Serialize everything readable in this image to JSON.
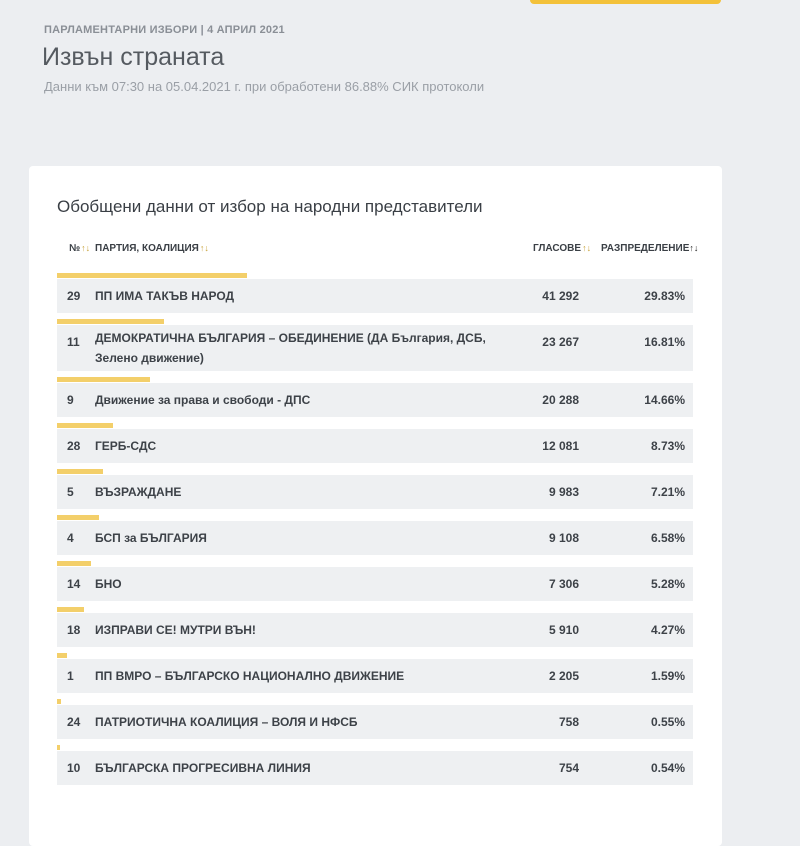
{
  "header": {
    "kicker": "ПАРЛАМЕНТАРНИ ИЗБОРИ | 4 АПРИЛ 2021",
    "title": "Извън страната",
    "subtitle": "Данни към 07:30 на 05.04.2021 г. при обработени 86.88% СИК протоколи"
  },
  "card": {
    "title": "Обобщени данни от избор на народни представители",
    "columns": {
      "num": "№",
      "party": "ПАРТИЯ, КОАЛИЦИЯ",
      "votes": "ГЛАСОВЕ",
      "dist": "РАЗПРЕДЕЛЕНИЕ",
      "sort_glyph": "↑↓",
      "sort_active_glyph": "↑↓"
    }
  },
  "colors": {
    "accent": "#f3c13a",
    "bar": "#f3cf6a",
    "row_bg": "#eef0f2",
    "page_bg": "#eceef1"
  },
  "rows": [
    {
      "num": "29",
      "party": "ПП ИМА ТАКЪВ НАРОД",
      "votes": "41 292",
      "dist": "29.83%",
      "share": 29.83
    },
    {
      "num": "11",
      "party": "ДЕМОКРАТИЧНА БЪЛГАРИЯ – ОБЕДИНЕНИЕ (ДА България, ДСБ, Зелено движение)",
      "votes": "23 267",
      "dist": "16.81%",
      "share": 16.81
    },
    {
      "num": "9",
      "party": "Движение за права и свободи - ДПС",
      "votes": "20 288",
      "dist": "14.66%",
      "share": 14.66
    },
    {
      "num": "28",
      "party": "ГЕРБ-СДС",
      "votes": "12 081",
      "dist": "8.73%",
      "share": 8.73
    },
    {
      "num": "5",
      "party": "ВЪЗРАЖДАНЕ",
      "votes": "9 983",
      "dist": "7.21%",
      "share": 7.21
    },
    {
      "num": "4",
      "party": "БСП за БЪЛГАРИЯ",
      "votes": "9 108",
      "dist": "6.58%",
      "share": 6.58
    },
    {
      "num": "14",
      "party": "БНО",
      "votes": "7 306",
      "dist": "5.28%",
      "share": 5.28
    },
    {
      "num": "18",
      "party": "ИЗПРАВИ СЕ! МУТРИ ВЪН!",
      "votes": "5 910",
      "dist": "4.27%",
      "share": 4.27
    },
    {
      "num": "1",
      "party": "ПП ВМРО – БЪЛГАРСКО НАЦИОНАЛНО ДВИЖЕНИЕ",
      "votes": "2 205",
      "dist": "1.59%",
      "share": 1.59
    },
    {
      "num": "24",
      "party": "ПАТРИОТИЧНА КОАЛИЦИЯ – ВОЛЯ И НФСБ",
      "votes": "758",
      "dist": "0.55%",
      "share": 0.55
    },
    {
      "num": "10",
      "party": "БЪЛГАРСКА ПРОГРЕСИВНА ЛИНИЯ",
      "votes": "754",
      "dist": "0.54%",
      "share": 0.54
    }
  ]
}
